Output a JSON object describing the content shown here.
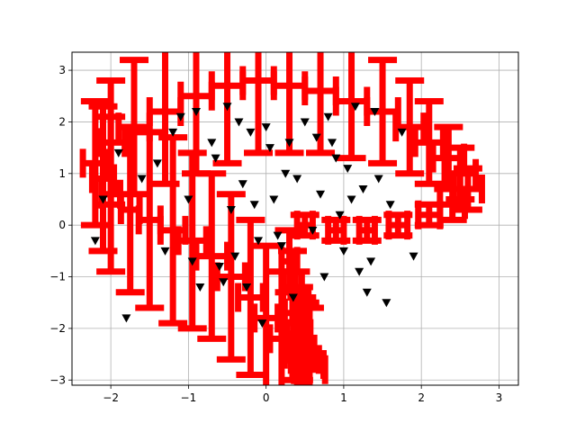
{
  "chart_data": {
    "type": "scatter",
    "title": "",
    "xlabel": "",
    "ylabel": "",
    "xlim": [
      -2.5,
      3.25
    ],
    "ylim": [
      -3.1,
      3.35
    ],
    "grid": true,
    "x_ticks": [
      -2,
      -1,
      0,
      1,
      2,
      3
    ],
    "y_ticks": [
      -3,
      -2,
      -1,
      0,
      1,
      2,
      3
    ],
    "x_tick_labels": [
      "−2",
      "−1",
      "0",
      "1",
      "2",
      "3"
    ],
    "y_tick_labels": [
      "−3",
      "−2",
      "−1",
      "0",
      "1",
      "2",
      "3"
    ],
    "colors": {
      "errorbar": "#ff0000",
      "marker": "#000000",
      "grid": "#b0b0b0"
    },
    "series": [
      {
        "kind": "errorbar",
        "x": [
          0.3,
          0.34,
          0.38,
          0.42,
          0.46,
          0.5,
          0.54,
          0.56,
          0.4,
          0.2,
          0.0,
          -0.2,
          -0.45,
          -0.7,
          -0.95,
          -1.2,
          -1.5,
          -1.75,
          -2.0,
          -2.1,
          -2.2,
          -2.0,
          -1.7,
          -1.3,
          -0.9,
          -0.5,
          -0.1,
          0.3,
          0.7,
          1.1,
          1.5,
          1.85,
          2.1,
          2.35,
          2.5,
          2.6,
          2.4,
          2.1,
          1.7,
          1.3,
          0.9,
          0.5
        ],
        "y": [
          -0.7,
          -1.2,
          -1.7,
          -2.1,
          -2.4,
          -2.6,
          -2.7,
          -2.8,
          -2.5,
          -2.2,
          -1.8,
          -1.4,
          -1.0,
          -0.6,
          -0.3,
          -0.1,
          0.1,
          0.3,
          0.6,
          0.9,
          1.2,
          1.6,
          1.9,
          2.2,
          2.5,
          2.7,
          2.8,
          2.7,
          2.6,
          2.4,
          2.2,
          1.9,
          1.6,
          1.3,
          1.0,
          0.7,
          0.4,
          0.2,
          0.0,
          -0.1,
          -0.1,
          0.0
        ],
        "xerr": [
          0.1,
          0.12,
          0.14,
          0.15,
          0.16,
          0.18,
          0.2,
          0.2,
          0.16,
          0.15,
          0.15,
          0.16,
          0.18,
          0.2,
          0.18,
          0.16,
          0.14,
          0.12,
          0.12,
          0.14,
          0.16,
          0.18,
          0.2,
          0.2,
          0.2,
          0.2,
          0.2,
          0.2,
          0.2,
          0.2,
          0.2,
          0.18,
          0.18,
          0.2,
          0.2,
          0.18,
          0.16,
          0.14,
          0.12,
          0.1,
          0.1,
          0.1
        ],
        "yerr": [
          0.6,
          0.7,
          0.8,
          0.9,
          1.0,
          1.1,
          1.1,
          1.2,
          1.2,
          1.3,
          1.4,
          1.5,
          1.6,
          1.6,
          1.7,
          1.8,
          1.7,
          1.6,
          1.5,
          1.4,
          1.2,
          1.2,
          1.3,
          1.4,
          1.5,
          1.5,
          1.4,
          1.3,
          1.2,
          1.1,
          1.0,
          0.9,
          0.8,
          0.6,
          0.5,
          0.4,
          0.3,
          0.2,
          0.2,
          0.2,
          0.2,
          0.2
        ]
      },
      {
        "kind": "scatter",
        "marker": "triangle-down",
        "x": [
          -2.2,
          -2.1,
          -1.9,
          -1.8,
          -1.6,
          -1.4,
          -1.3,
          -1.2,
          -1.1,
          -1.0,
          -0.95,
          -0.9,
          -0.85,
          -0.7,
          -0.6,
          -0.5,
          -0.45,
          -0.4,
          -0.35,
          -0.3,
          -0.2,
          -0.1,
          0.0,
          0.1,
          0.2,
          0.3,
          0.4,
          0.5,
          0.6,
          0.65,
          0.7,
          0.75,
          0.8,
          0.9,
          1.0,
          1.05,
          1.1,
          1.15,
          1.2,
          1.25,
          1.3,
          1.4,
          1.45,
          1.55,
          1.6,
          1.75,
          1.9,
          -0.05,
          0.05,
          0.15,
          0.25,
          0.35,
          -0.15,
          -0.25,
          0.85,
          0.95,
          1.35,
          -0.55,
          -0.65
        ],
        "y": [
          -0.3,
          0.5,
          1.4,
          -1.8,
          0.9,
          1.2,
          -0.5,
          1.8,
          2.1,
          0.5,
          -0.7,
          2.2,
          -1.2,
          1.6,
          -0.8,
          2.3,
          0.3,
          -0.6,
          2.0,
          0.8,
          1.8,
          -0.3,
          1.9,
          0.5,
          -0.4,
          1.6,
          0.9,
          2.0,
          -0.1,
          1.7,
          0.6,
          -1.0,
          2.1,
          1.3,
          -0.5,
          1.1,
          0.5,
          2.3,
          -0.9,
          0.7,
          -1.3,
          2.2,
          0.9,
          -1.5,
          0.4,
          1.8,
          -0.6,
          -1.9,
          1.5,
          -0.2,
          1.0,
          -1.4,
          0.4,
          -1.2,
          1.6,
          0.2,
          -0.7,
          -1.1,
          1.3
        ]
      }
    ]
  }
}
